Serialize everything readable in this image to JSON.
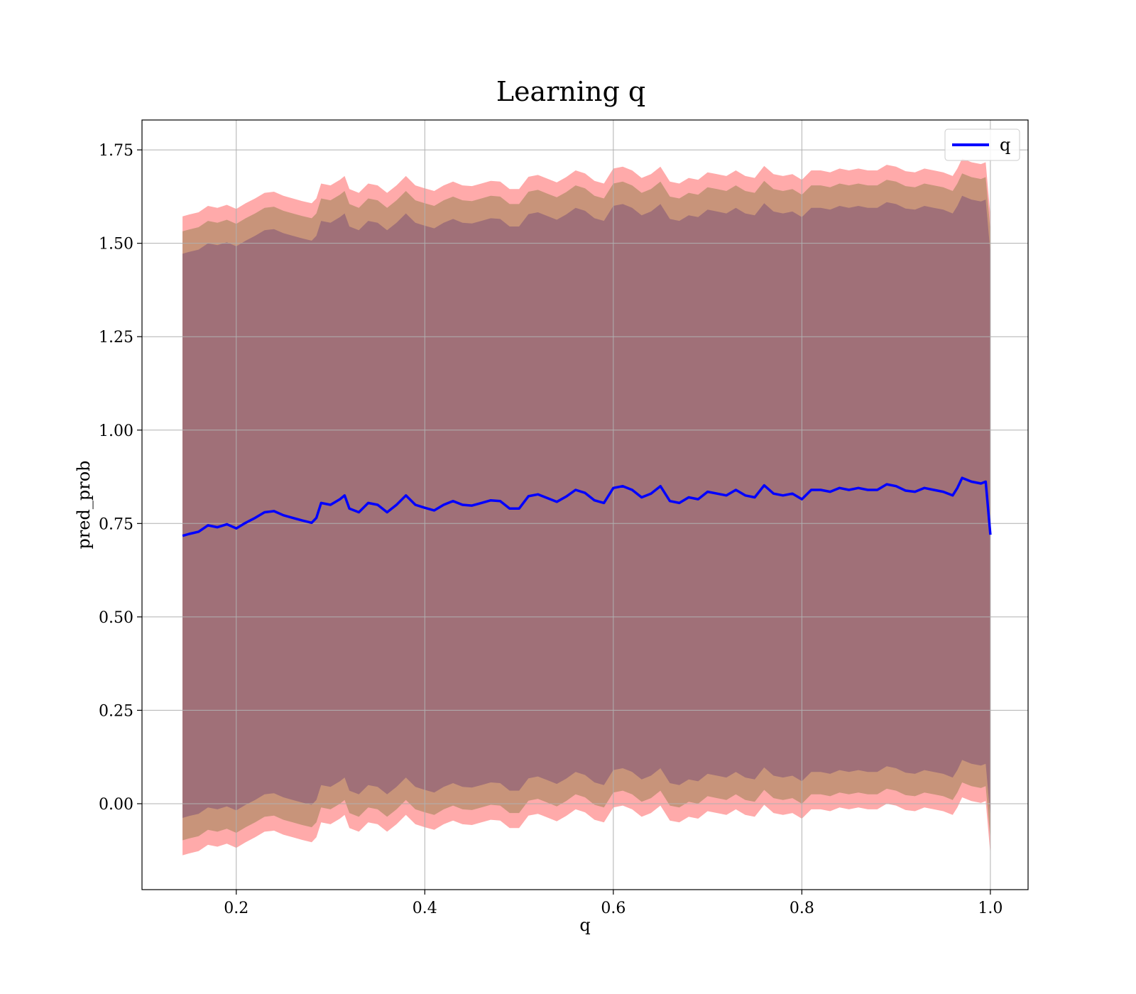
{
  "chart_data": {
    "type": "line",
    "title": "Learning q",
    "xlabel": "q",
    "ylabel": "pred_prob",
    "xlim": [
      0.1,
      1.04
    ],
    "ylim": [
      -0.23,
      1.83
    ],
    "xticks": [
      0.2,
      0.4,
      0.6,
      0.8,
      1.0
    ],
    "xtick_labels": [
      "0.2",
      "0.4",
      "0.6",
      "0.8",
      "1.0"
    ],
    "yticks": [
      0.0,
      0.25,
      0.5,
      0.75,
      1.0,
      1.25,
      1.5,
      1.75
    ],
    "ytick_labels": [
      "0.00",
      "0.25",
      "0.50",
      "0.75",
      "1.00",
      "1.25",
      "1.50",
      "1.75"
    ],
    "grid": true,
    "legend_position": "top-right",
    "colors": {
      "line": "#0000ff",
      "band_outer": "#ffaaaa",
      "band_middle": "#c8947a",
      "band_inner": "#a07078"
    },
    "series": [
      {
        "name": "q",
        "x": [
          0.143,
          0.15,
          0.16,
          0.17,
          0.18,
          0.19,
          0.2,
          0.21,
          0.22,
          0.23,
          0.24,
          0.25,
          0.26,
          0.27,
          0.28,
          0.285,
          0.29,
          0.3,
          0.31,
          0.315,
          0.32,
          0.33,
          0.34,
          0.35,
          0.36,
          0.37,
          0.38,
          0.39,
          0.4,
          0.41,
          0.42,
          0.43,
          0.44,
          0.45,
          0.46,
          0.47,
          0.48,
          0.49,
          0.5,
          0.51,
          0.52,
          0.53,
          0.54,
          0.55,
          0.56,
          0.57,
          0.58,
          0.59,
          0.6,
          0.61,
          0.62,
          0.63,
          0.64,
          0.65,
          0.66,
          0.67,
          0.68,
          0.69,
          0.7,
          0.71,
          0.72,
          0.73,
          0.74,
          0.75,
          0.76,
          0.77,
          0.78,
          0.79,
          0.8,
          0.81,
          0.82,
          0.83,
          0.84,
          0.85,
          0.86,
          0.87,
          0.88,
          0.89,
          0.9,
          0.91,
          0.92,
          0.93,
          0.94,
          0.95,
          0.96,
          0.965,
          0.97,
          0.98,
          0.99,
          0.995,
          1.0
        ],
        "y": [
          0.717,
          0.722,
          0.728,
          0.745,
          0.74,
          0.748,
          0.737,
          0.752,
          0.765,
          0.78,
          0.783,
          0.772,
          0.765,
          0.758,
          0.752,
          0.765,
          0.805,
          0.8,
          0.815,
          0.825,
          0.79,
          0.78,
          0.805,
          0.8,
          0.78,
          0.8,
          0.825,
          0.8,
          0.792,
          0.785,
          0.8,
          0.81,
          0.8,
          0.798,
          0.805,
          0.812,
          0.81,
          0.79,
          0.79,
          0.823,
          0.828,
          0.818,
          0.808,
          0.822,
          0.84,
          0.832,
          0.812,
          0.805,
          0.845,
          0.85,
          0.84,
          0.82,
          0.83,
          0.85,
          0.81,
          0.805,
          0.82,
          0.815,
          0.835,
          0.83,
          0.825,
          0.84,
          0.825,
          0.82,
          0.852,
          0.83,
          0.825,
          0.83,
          0.815,
          0.84,
          0.84,
          0.835,
          0.845,
          0.84,
          0.845,
          0.84,
          0.84,
          0.855,
          0.85,
          0.838,
          0.835,
          0.845,
          0.84,
          0.835,
          0.825,
          0.845,
          0.872,
          0.862,
          0.857,
          0.862,
          0.72
        ]
      }
    ],
    "bands": [
      {
        "name": "outer",
        "lower_offset": -0.855,
        "upper_offset": 0.855
      },
      {
        "name": "middle",
        "lower_offset": -0.815,
        "upper_offset": 0.815
      },
      {
        "name": "inner",
        "lower_offset": -0.755,
        "upper_offset": 0.755
      }
    ]
  }
}
